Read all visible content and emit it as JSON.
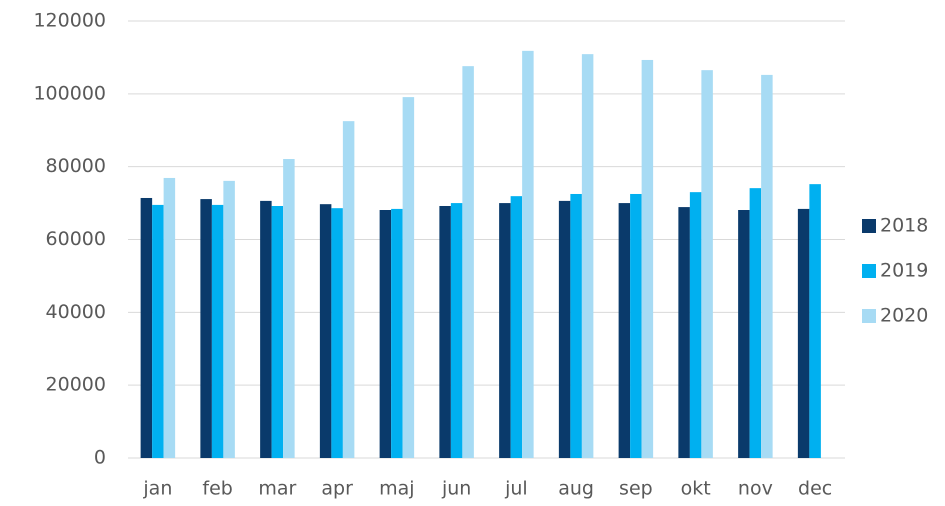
{
  "chart_data": {
    "type": "bar",
    "categories": [
      "jan",
      "feb",
      "mar",
      "apr",
      "maj",
      "jun",
      "jul",
      "aug",
      "sep",
      "okt",
      "nov",
      "dec"
    ],
    "series": [
      {
        "name": "2018",
        "color": "#0a3a6b",
        "values": [
          71400,
          71100,
          70600,
          69700,
          68100,
          69200,
          70000,
          70600,
          70000,
          68900,
          68100,
          68400
        ]
      },
      {
        "name": "2019",
        "color": "#00b0f0",
        "values": [
          69500,
          69500,
          69200,
          68600,
          68400,
          70000,
          71900,
          72500,
          72500,
          73000,
          74100,
          75200
        ]
      },
      {
        "name": "2020",
        "color": "#a7dbf4",
        "values": [
          76900,
          76100,
          82100,
          92500,
          99100,
          107600,
          111800,
          110900,
          109300,
          106500,
          105200,
          null
        ]
      }
    ],
    "ylim": [
      0,
      120000
    ],
    "yticks": [
      0,
      20000,
      40000,
      60000,
      80000,
      100000,
      120000
    ],
    "grid": true,
    "legend": "right"
  }
}
